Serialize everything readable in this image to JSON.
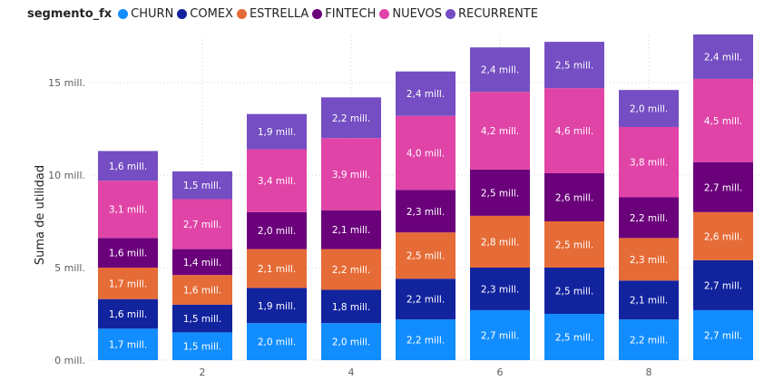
{
  "legend": {
    "title": "segmento_fx",
    "items": [
      {
        "name": "CHURN",
        "color": "#118DFF"
      },
      {
        "name": "COMEX",
        "color": "#12239E"
      },
      {
        "name": "ESTRELLA",
        "color": "#E66C37"
      },
      {
        "name": "FINTECH",
        "color": "#6B007B"
      },
      {
        "name": "NUEVOS",
        "color": "#E044A7"
      },
      {
        "name": "RECURRENTE",
        "color": "#744EC2"
      }
    ]
  },
  "chart_data": {
    "type": "bar",
    "stacked": true,
    "ylabel": "Suma de utilidad",
    "xlabel": "",
    "x": [
      1,
      2,
      3,
      4,
      5,
      6,
      7,
      8,
      9
    ],
    "x_tick_labels": [
      "2",
      "4",
      "6",
      "8"
    ],
    "x_tick_values": [
      2,
      4,
      6,
      8
    ],
    "ylim": [
      0,
      17.5
    ],
    "y_ticks": [
      0,
      5,
      10,
      15
    ],
    "y_tick_labels": [
      "0 mill.",
      "5 mill.",
      "10 mill.",
      "15 mill."
    ],
    "grid": true,
    "legend_position": "top-left",
    "series": [
      {
        "name": "CHURN",
        "color": "#118DFF",
        "values": [
          1.7,
          1.5,
          2.0,
          2.0,
          2.2,
          2.7,
          2.5,
          2.2,
          2.7
        ],
        "labels": [
          "1,7 mill.",
          "1,5 mill.",
          "2,0 mill.",
          "2,0 mill.",
          "2,2 mill.",
          "2,7 mill.",
          "2,5 mill.",
          "2,2 mill.",
          "2,7 mill."
        ]
      },
      {
        "name": "COMEX",
        "color": "#12239E",
        "values": [
          1.6,
          1.5,
          1.9,
          1.8,
          2.2,
          2.3,
          2.5,
          2.1,
          2.7
        ],
        "labels": [
          "1,6 mill.",
          "1,5 mill.",
          "1,9 mill.",
          "1,8 mill.",
          "2,2 mill.",
          "2,3 mill.",
          "2,5 mill.",
          "2,1 mill.",
          "2,7 mill."
        ]
      },
      {
        "name": "ESTRELLA",
        "color": "#E66C37",
        "values": [
          1.7,
          1.6,
          2.1,
          2.2,
          2.5,
          2.8,
          2.5,
          2.3,
          2.6
        ],
        "labels": [
          "1,7 mill.",
          "1,6 mill.",
          "2,1 mill.",
          "2,2 mill.",
          "2,5 mill.",
          "2,8 mill.",
          "2,5 mill.",
          "2,3 mill.",
          "2,6 mill."
        ]
      },
      {
        "name": "FINTECH",
        "color": "#6B007B",
        "values": [
          1.6,
          1.4,
          2.0,
          2.1,
          2.3,
          2.5,
          2.6,
          2.2,
          2.7
        ],
        "labels": [
          "1,6 mill.",
          "1,4 mill.",
          "2,0 mill.",
          "2,1 mill.",
          "2,3 mill.",
          "2,5 mill.",
          "2,6 mill.",
          "2,2 mill.",
          "2,7 mill."
        ]
      },
      {
        "name": "NUEVOS",
        "color": "#E044A7",
        "values": [
          3.1,
          2.7,
          3.4,
          3.9,
          4.0,
          4.2,
          4.6,
          3.8,
          4.5
        ],
        "labels": [
          "3,1 mill.",
          "2,7 mill.",
          "3,4 mill.",
          "3,9 mill.",
          "4,0 mill.",
          "4,2 mill.",
          "4,6 mill.",
          "3,8 mill.",
          "4,5 mill."
        ]
      },
      {
        "name": "RECURRENTE",
        "color": "#744EC2",
        "values": [
          1.6,
          1.5,
          1.9,
          2.2,
          2.4,
          2.4,
          2.5,
          2.0,
          2.4
        ],
        "labels": [
          "1,6 mill.",
          "1,5 mill.",
          "1,9 mill.",
          "2,2 mill.",
          "2,4 mill.",
          "2,4 mill.",
          "2,5 mill.",
          "2,0 mill.",
          "2,4 mill."
        ]
      }
    ]
  }
}
